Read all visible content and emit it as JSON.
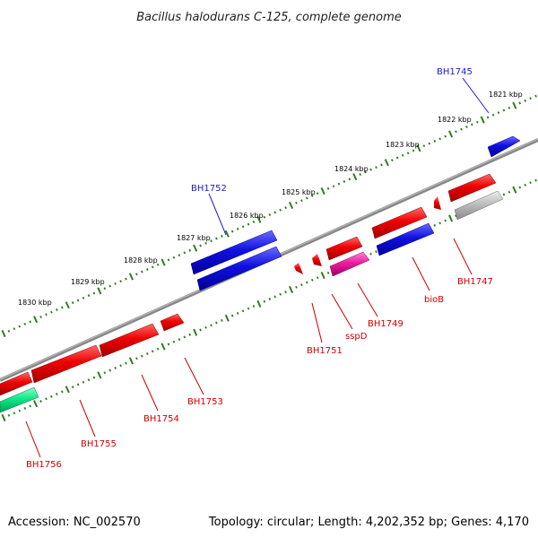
{
  "title": "Bacillus halodurans C-125, complete genome",
  "footer": {
    "accession": "Accession: NC_002570",
    "summary": "Topology: circular; Length: 4,202,352 bp; Genes: 4,170"
  },
  "colors": {
    "backbone": "#888888",
    "tick": "#2e7d1e",
    "label_forward": "#1a1acc",
    "label_reverse": "#cc0000"
  },
  "kbp_labels": [
    "1821 kbp",
    "1822 kbp",
    "1823 kbp",
    "1824 kbp",
    "1825 kbp",
    "1826 kbp",
    "1827 kbp",
    "1828 kbp",
    "1829 kbp",
    "1830 kbp"
  ],
  "gene_labels": [
    "BH1745",
    "BH1752",
    "BH1747",
    "bioB",
    "BH1749",
    "sspD",
    "BH1751",
    "BH1753",
    "BH1754",
    "BH1755",
    "BH1756"
  ]
}
